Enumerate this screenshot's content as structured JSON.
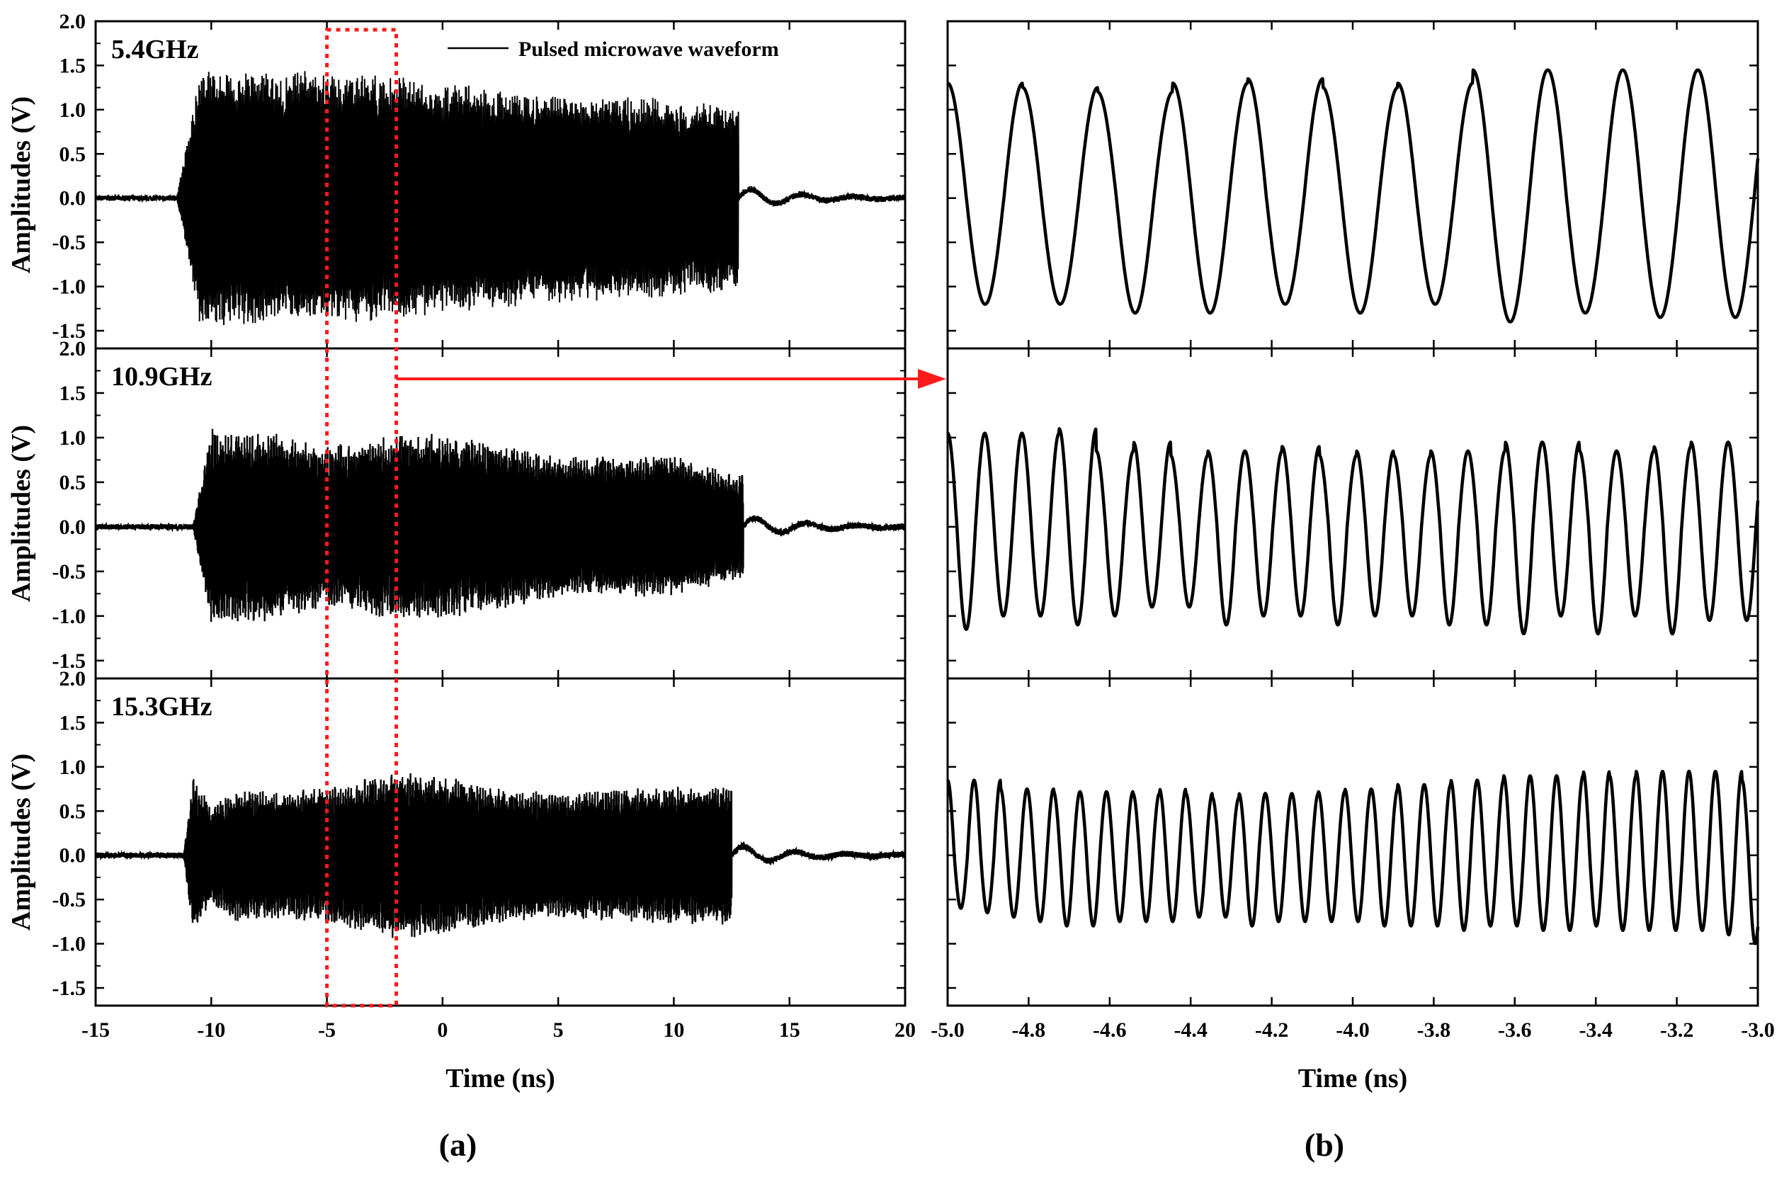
{
  "figure": {
    "caption_a": "(a)",
    "caption_b": "(b)",
    "colors": {
      "waveform": "#000000",
      "highlight": "#ff1a1a",
      "background": "#ffffff"
    }
  },
  "chart_data": [
    {
      "panel": "a",
      "type": "line",
      "xlabel": "Time (ns)",
      "xlim": [
        -15,
        20
      ],
      "xticks": [
        "-15",
        "-10",
        "-5",
        "0",
        "5",
        "10",
        "15",
        "20"
      ],
      "legend": {
        "entry": "Pulsed microwave waveform",
        "placement": "top-right"
      },
      "highlight_window_ns": [
        -5,
        -2
      ],
      "subplots": [
        {
          "label": "5.4GHz",
          "ylabel": "Amplitudes (V)",
          "ylim": [
            -1.7,
            2.0
          ],
          "yticks": [
            "2.0",
            "1.5",
            "1.0",
            "0.5",
            "0.0",
            "-0.5",
            "-1.0",
            "-1.5"
          ],
          "frequency_ghz": 5.4,
          "pulse_start_ns": -11.5,
          "pulse_end_ns": 12.8,
          "envelope_ns": [
            -11.5,
            -10.5,
            -5,
            -2,
            0,
            5,
            10,
            12.5
          ],
          "envelope_v": [
            0.0,
            1.45,
            1.45,
            1.38,
            1.3,
            1.2,
            1.12,
            1.05
          ]
        },
        {
          "label": "10.9GHz",
          "ylabel": "Amplitudes (V)",
          "ylim": [
            -1.7,
            2.0
          ],
          "yticks": [
            "2.0",
            "1.5",
            "1.0",
            "0.5",
            "0.0",
            "-0.5",
            "-1.0",
            "-1.5"
          ],
          "frequency_ghz": 10.9,
          "pulse_start_ns": -10.8,
          "pulse_end_ns": 13.0,
          "envelope_ns": [
            -10.8,
            -10,
            -7,
            -5,
            -2,
            0,
            3,
            5,
            10,
            12.5
          ],
          "envelope_v": [
            0.0,
            1.1,
            1.05,
            0.9,
            1.05,
            1.05,
            0.9,
            0.8,
            0.8,
            0.6
          ]
        },
        {
          "label": "15.3GHz",
          "ylabel": "Amplitudes (V)",
          "ylim": [
            -1.7,
            2.0
          ],
          "yticks": [
            "2.0",
            "1.5",
            "1.0",
            "0.5",
            "0.0",
            "-0.5",
            "-1.0",
            "-1.5"
          ],
          "frequency_ghz": 15.3,
          "pulse_start_ns": -11.2,
          "pulse_end_ns": 12.5,
          "envelope_ns": [
            -11.2,
            -10.8,
            -10,
            -9,
            -7,
            -5,
            -2,
            0,
            3,
            5,
            10,
            12.3
          ],
          "envelope_v": [
            0.0,
            0.9,
            0.55,
            0.75,
            0.72,
            0.78,
            0.95,
            0.9,
            0.75,
            0.72,
            0.78,
            0.8
          ]
        }
      ]
    },
    {
      "panel": "b",
      "type": "line",
      "xlabel": "Time (ns)",
      "xlim": [
        -5.0,
        -3.0
      ],
      "xticks": [
        "-5.0",
        "-4.8",
        "-4.6",
        "-4.4",
        "-4.2",
        "-4.0",
        "-3.8",
        "-3.6",
        "-3.4",
        "-3.2",
        "-3.0"
      ],
      "subplots": [
        {
          "ylim": [
            -1.7,
            2.0
          ],
          "frequency_ghz": 5.4,
          "peaks_v": [
            1.3,
            1.25,
            1.2,
            1.3,
            1.35,
            1.25,
            1.3,
            1.45,
            1.45,
            1.45
          ],
          "troughs_v": [
            -1.2,
            -1.2,
            -1.3,
            -1.3,
            -1.2,
            -1.3,
            -1.2,
            -1.4,
            -1.3,
            -1.35
          ]
        },
        {
          "ylim": [
            -1.7,
            2.0
          ],
          "frequency_ghz": 10.9,
          "peaks_v": [
            1.05,
            1.05,
            1.05,
            1.1,
            0.85,
            0.95,
            0.8,
            0.85,
            0.85,
            0.9,
            0.8,
            0.85,
            0.8,
            0.85,
            0.85,
            0.95,
            0.95,
            0.85,
            0.85,
            0.9,
            0.95
          ],
          "troughs_v": [
            -1.15,
            -1.0,
            -1.0,
            -1.1,
            -1.0,
            -0.9,
            -0.9,
            -1.1,
            -1.0,
            -1.0,
            -1.1,
            -1.0,
            -1.0,
            -1.1,
            -1.1,
            -1.2,
            -1.0,
            -1.2,
            -1.0,
            -1.2,
            -1.05
          ]
        },
        {
          "ylim": [
            -1.7,
            2.0
          ],
          "frequency_ghz": 15.3,
          "peaks_v": [
            0.85,
            0.85,
            0.75,
            0.75,
            0.72,
            0.72,
            0.72,
            0.7,
            0.75,
            0.7,
            0.65,
            0.7,
            0.7,
            0.7,
            0.72,
            0.75,
            0.75,
            0.8,
            0.8,
            0.85,
            0.85,
            0.9,
            0.9,
            0.9,
            0.95,
            0.9,
            0.95,
            0.95,
            0.95,
            0.95,
            0.85
          ],
          "troughs_v": [
            -0.6,
            -0.65,
            -0.7,
            -0.75,
            -0.8,
            -0.8,
            -0.75,
            -0.75,
            -0.75,
            -0.7,
            -0.7,
            -0.8,
            -0.75,
            -0.75,
            -0.75,
            -0.75,
            -0.8,
            -0.8,
            -0.8,
            -0.85,
            -0.8,
            -0.8,
            -0.85,
            -0.85,
            -0.8,
            -0.85,
            -0.85,
            -0.85,
            -0.85,
            -0.9,
            -1.0
          ]
        }
      ]
    }
  ]
}
